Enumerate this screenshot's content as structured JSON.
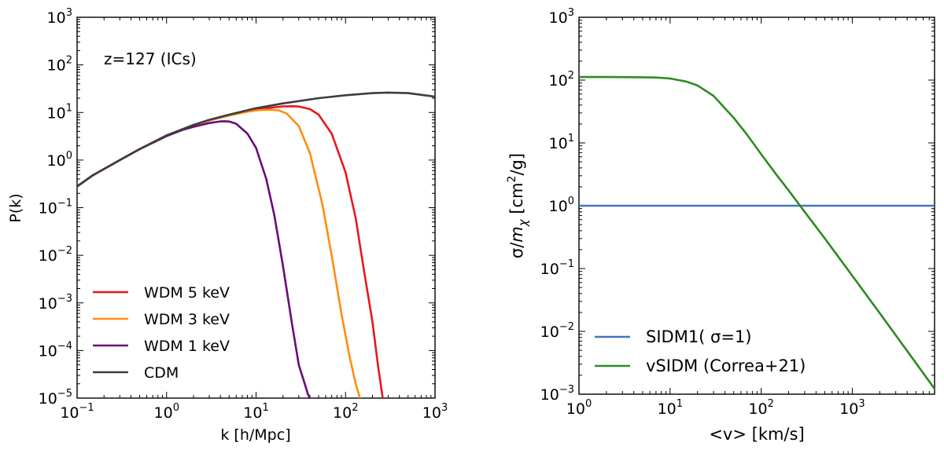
{
  "chart_data": [
    {
      "type": "line",
      "xscale": "log",
      "yscale": "log",
      "xlim": [
        0.1,
        1000
      ],
      "ylim": [
        1e-05,
        1000
      ],
      "xlabel": "k [h/Mpc]",
      "ylabel": "P(k)",
      "annotation": "z=127 (ICs)",
      "legend_position": "lower-left",
      "x_major_ticks": [
        0.1,
        1,
        10,
        100,
        1000
      ],
      "y_major_ticks": [
        1e-05,
        0.0001,
        0.001,
        0.01,
        0.1,
        1,
        10,
        100,
        1000
      ],
      "x_tick_labels": [
        {
          "base": "10",
          "exp": "−1"
        },
        {
          "base": "10",
          "exp": "0"
        },
        {
          "base": "10",
          "exp": "1"
        },
        {
          "base": "10",
          "exp": "2"
        },
        {
          "base": "10",
          "exp": "3"
        }
      ],
      "y_tick_labels": [
        {
          "base": "10",
          "exp": "−5"
        },
        {
          "base": "10",
          "exp": "−4"
        },
        {
          "base": "10",
          "exp": "−3"
        },
        {
          "base": "10",
          "exp": "−2"
        },
        {
          "base": "10",
          "exp": "−1"
        },
        {
          "base": "10",
          "exp": "0"
        },
        {
          "base": "10",
          "exp": "1"
        },
        {
          "base": "10",
          "exp": "2"
        },
        {
          "base": "10",
          "exp": "3"
        }
      ],
      "series": [
        {
          "name": "WDM 5 keV",
          "color": "#e8171c",
          "x": [
            0.1,
            0.15,
            0.2,
            0.3,
            0.5,
            1,
            2,
            3,
            5,
            10,
            15,
            20,
            25,
            30,
            40,
            50,
            70,
            100,
            130,
            160,
            200,
            230,
            260
          ],
          "y": [
            0.28,
            0.48,
            0.65,
            1.0,
            1.7,
            3.3,
            5.4,
            6.8,
            8.7,
            11.5,
            12.7,
            13.4,
            13.5,
            13.3,
            11.8,
            9.0,
            3.6,
            0.55,
            0.06,
            0.005,
            0.0004,
            5e-05,
            1e-05
          ]
        },
        {
          "name": "WDM 3 keV",
          "color": "#ff8c12",
          "x": [
            0.1,
            0.15,
            0.2,
            0.3,
            0.5,
            1,
            2,
            3,
            5,
            8,
            10,
            12,
            15,
            18,
            22,
            30,
            40,
            55,
            70,
            90,
            110,
            130,
            145
          ],
          "y": [
            0.28,
            0.48,
            0.65,
            1.0,
            1.7,
            3.3,
            5.4,
            6.8,
            8.6,
            10.4,
            11.0,
            11.3,
            11.4,
            11.0,
            9.5,
            5.2,
            1.4,
            0.12,
            0.01,
            0.0006,
            8e-05,
            2e-05,
            1e-05
          ]
        },
        {
          "name": "WDM 1 keV",
          "color": "#6a0a78",
          "x": [
            0.1,
            0.15,
            0.2,
            0.3,
            0.5,
            1,
            1.5,
            2,
            3,
            4,
            4.5,
            5,
            6,
            8,
            10,
            13,
            16,
            20,
            25,
            30,
            35,
            38,
            40
          ],
          "y": [
            0.28,
            0.48,
            0.65,
            1.0,
            1.7,
            3.2,
            4.3,
            5.0,
            6.0,
            6.5,
            6.55,
            6.45,
            5.8,
            3.6,
            1.8,
            0.4,
            0.07,
            0.006,
            0.0004,
            5e-05,
            2e-05,
            1.2e-05,
            1e-05
          ]
        },
        {
          "name": "CDM",
          "color": "#3d3d3d",
          "x": [
            0.1,
            0.15,
            0.2,
            0.3,
            0.5,
            1,
            2,
            3,
            5,
            10,
            20,
            50,
            100,
            200,
            300,
            500,
            1000
          ],
          "y": [
            0.28,
            0.48,
            0.65,
            1.0,
            1.7,
            3.3,
            5.5,
            7.0,
            9.0,
            12.3,
            15.5,
            20.0,
            23.0,
            25.5,
            26.2,
            25.5,
            21.5
          ]
        }
      ]
    },
    {
      "type": "line",
      "xscale": "log",
      "yscale": "log",
      "xlim": [
        1,
        8000
      ],
      "ylim": [
        0.001,
        1000
      ],
      "xlabel": "<v> [km/s]",
      "ylabel": "σ/m_χ [cm²/g]",
      "ylabel_parts": {
        "pre": "σ/",
        "m": "m",
        "sub": "χ",
        "mid": " [cm",
        "sup": "2",
        "post": "/g]"
      },
      "legend_position": "lower-left",
      "x_major_ticks": [
        1,
        10,
        100,
        1000
      ],
      "y_major_ticks": [
        0.001,
        0.01,
        0.1,
        1,
        10,
        100,
        1000
      ],
      "x_tick_labels": [
        {
          "base": "10",
          "exp": "0"
        },
        {
          "base": "10",
          "exp": "1"
        },
        {
          "base": "10",
          "exp": "2"
        },
        {
          "base": "10",
          "exp": "3"
        }
      ],
      "y_tick_labels": [
        {
          "base": "10",
          "exp": "−3"
        },
        {
          "base": "10",
          "exp": "−2"
        },
        {
          "base": "10",
          "exp": "−1"
        },
        {
          "base": "10",
          "exp": "0"
        },
        {
          "base": "10",
          "exp": "1"
        },
        {
          "base": "10",
          "exp": "2"
        },
        {
          "base": "10",
          "exp": "3"
        }
      ],
      "series": [
        {
          "name": "SIDM1( σ=1)",
          "color": "#4472c4",
          "x": [
            1,
            8000
          ],
          "y": [
            1,
            1
          ]
        },
        {
          "name": "vSIDM (Correa+21)",
          "color": "#2e8b22",
          "x": [
            1,
            2,
            3,
            5,
            7,
            10,
            15,
            20,
            30,
            50,
            70,
            100,
            150,
            200,
            300,
            500,
            700,
            1000,
            2000,
            4000,
            8000
          ],
          "y": [
            112,
            112,
            111.5,
            111,
            110,
            106,
            95,
            82,
            56,
            25,
            13.5,
            6.6,
            3.0,
            1.75,
            0.8,
            0.3,
            0.155,
            0.077,
            0.0195,
            0.0049,
            0.00122
          ]
        }
      ]
    }
  ]
}
